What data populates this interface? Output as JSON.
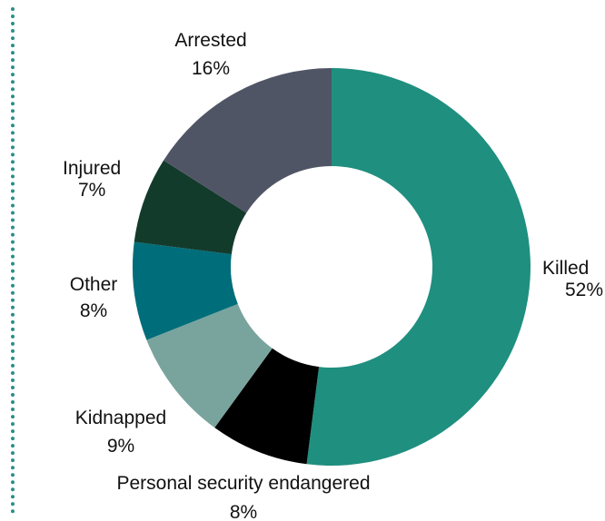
{
  "chart_data": {
    "type": "pie",
    "variant": "donut",
    "slices": [
      {
        "name": "Killed",
        "pct_label": "52%",
        "value": 52,
        "color": "#1f8f7f"
      },
      {
        "name": "Personal security endangered",
        "pct_label": "8%",
        "value": 8,
        "color": "#000000"
      },
      {
        "name": "Kidnapped",
        "pct_label": "9%",
        "value": 9,
        "color": "#79a49d"
      },
      {
        "name": "Other",
        "pct_label": "8%",
        "value": 8,
        "color": "#006d7a"
      },
      {
        "name": "Injured",
        "pct_label": "7%",
        "value": 7,
        "color": "#133b2c"
      },
      {
        "name": "Arrested",
        "pct_label": "16%",
        "value": 16,
        "color": "#505565"
      }
    ],
    "start_angle_deg": 0,
    "direction": "clockwise",
    "legend": "none"
  }
}
